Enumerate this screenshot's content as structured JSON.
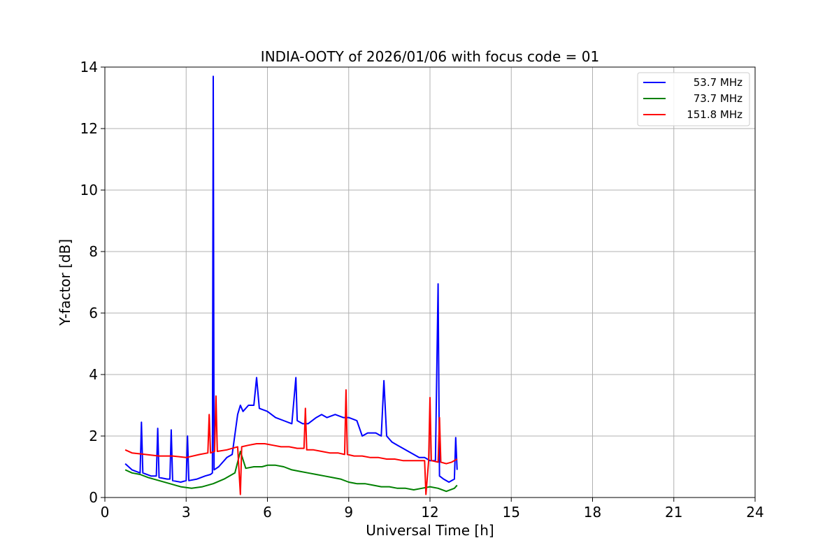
{
  "chart_data": {
    "type": "line",
    "title": "INDIA-OOTY of 2026/01/06 with focus code = 01",
    "xlabel": "Universal Time [h]",
    "ylabel": "Y-factor [dB]",
    "xlim": [
      0,
      24
    ],
    "ylim": [
      0,
      14
    ],
    "xticks": [
      0,
      3,
      6,
      9,
      12,
      15,
      18,
      21,
      24
    ],
    "yticks": [
      0,
      2,
      4,
      6,
      8,
      10,
      12,
      14
    ],
    "grid": true,
    "legend_position": "top-right",
    "series": [
      {
        "name": "53.7 MHz",
        "color": "#0000ff",
        "x": [
          0.75,
          1.0,
          1.3,
          1.35,
          1.4,
          1.7,
          1.9,
          1.95,
          2.0,
          2.3,
          2.4,
          2.45,
          2.5,
          2.8,
          3.0,
          3.05,
          3.1,
          3.4,
          3.7,
          3.9,
          3.97,
          4.0,
          4.03,
          4.2,
          4.5,
          4.7,
          4.9,
          5.0,
          5.1,
          5.3,
          5.5,
          5.6,
          5.7,
          6.0,
          6.3,
          6.6,
          6.9,
          7.05,
          7.1,
          7.3,
          7.5,
          7.8,
          8.0,
          8.2,
          8.5,
          8.8,
          9.0,
          9.3,
          9.5,
          9.7,
          10.0,
          10.2,
          10.3,
          10.4,
          10.6,
          10.8,
          11.0,
          11.2,
          11.4,
          11.6,
          11.8,
          12.0,
          12.2,
          12.3,
          12.35,
          12.5,
          12.7,
          12.9,
          12.95,
          13.0
        ],
        "values": [
          1.1,
          0.9,
          0.8,
          2.45,
          0.8,
          0.7,
          0.7,
          2.25,
          0.65,
          0.6,
          0.6,
          2.2,
          0.55,
          0.5,
          0.55,
          2.0,
          0.55,
          0.6,
          0.7,
          0.75,
          0.8,
          13.7,
          0.9,
          1.0,
          1.3,
          1.4,
          2.7,
          3.0,
          2.8,
          3.0,
          3.0,
          3.9,
          2.9,
          2.8,
          2.6,
          2.5,
          2.4,
          3.9,
          2.5,
          2.4,
          2.4,
          2.6,
          2.7,
          2.6,
          2.7,
          2.6,
          2.6,
          2.5,
          2.0,
          2.1,
          2.1,
          2.0,
          3.8,
          2.0,
          1.8,
          1.7,
          1.6,
          1.5,
          1.4,
          1.3,
          1.3,
          1.2,
          1.2,
          6.95,
          0.7,
          0.6,
          0.5,
          0.6,
          1.95,
          0.9
        ]
      },
      {
        "name": "73.7 MHz",
        "color": "#008000",
        "x": [
          0.75,
          1.0,
          1.3,
          1.6,
          2.0,
          2.4,
          2.8,
          3.2,
          3.6,
          4.0,
          4.4,
          4.8,
          5.0,
          5.2,
          5.5,
          5.8,
          6.0,
          6.3,
          6.6,
          6.9,
          7.2,
          7.5,
          7.8,
          8.1,
          8.4,
          8.7,
          9.0,
          9.3,
          9.6,
          9.9,
          10.2,
          10.5,
          10.8,
          11.1,
          11.4,
          11.7,
          12.0,
          12.3,
          12.6,
          12.9,
          13.0
        ],
        "values": [
          0.9,
          0.8,
          0.75,
          0.65,
          0.55,
          0.45,
          0.35,
          0.3,
          0.35,
          0.45,
          0.6,
          0.8,
          1.5,
          0.95,
          1.0,
          1.0,
          1.05,
          1.05,
          1.0,
          0.9,
          0.85,
          0.8,
          0.75,
          0.7,
          0.65,
          0.6,
          0.5,
          0.45,
          0.45,
          0.4,
          0.35,
          0.35,
          0.3,
          0.3,
          0.25,
          0.3,
          0.35,
          0.3,
          0.2,
          0.3,
          0.4
        ]
      },
      {
        "name": "151.8 MHz",
        "color": "#ff0000",
        "x": [
          0.75,
          1.0,
          1.5,
          2.0,
          2.5,
          3.0,
          3.5,
          3.8,
          3.85,
          3.9,
          4.05,
          4.1,
          4.15,
          4.5,
          4.9,
          5.0,
          5.05,
          5.3,
          5.6,
          5.9,
          6.2,
          6.5,
          6.8,
          7.1,
          7.35,
          7.4,
          7.45,
          7.7,
          8.0,
          8.3,
          8.6,
          8.85,
          8.9,
          8.95,
          9.2,
          9.5,
          9.8,
          10.1,
          10.4,
          10.7,
          11.0,
          11.3,
          11.6,
          11.8,
          11.85,
          11.95,
          12.0,
          12.05,
          12.3,
          12.35,
          12.4,
          12.6,
          12.8,
          13.0
        ],
        "values": [
          1.55,
          1.45,
          1.4,
          1.35,
          1.35,
          1.3,
          1.4,
          1.45,
          2.7,
          1.45,
          1.5,
          3.3,
          1.5,
          1.55,
          1.65,
          0.1,
          1.65,
          1.7,
          1.75,
          1.75,
          1.7,
          1.65,
          1.65,
          1.6,
          1.6,
          2.9,
          1.55,
          1.55,
          1.5,
          1.45,
          1.45,
          1.4,
          3.5,
          1.4,
          1.35,
          1.35,
          1.3,
          1.3,
          1.25,
          1.25,
          1.2,
          1.2,
          1.2,
          1.2,
          0.1,
          1.2,
          3.25,
          1.2,
          1.15,
          2.6,
          1.15,
          1.1,
          1.15,
          1.25
        ]
      }
    ]
  }
}
